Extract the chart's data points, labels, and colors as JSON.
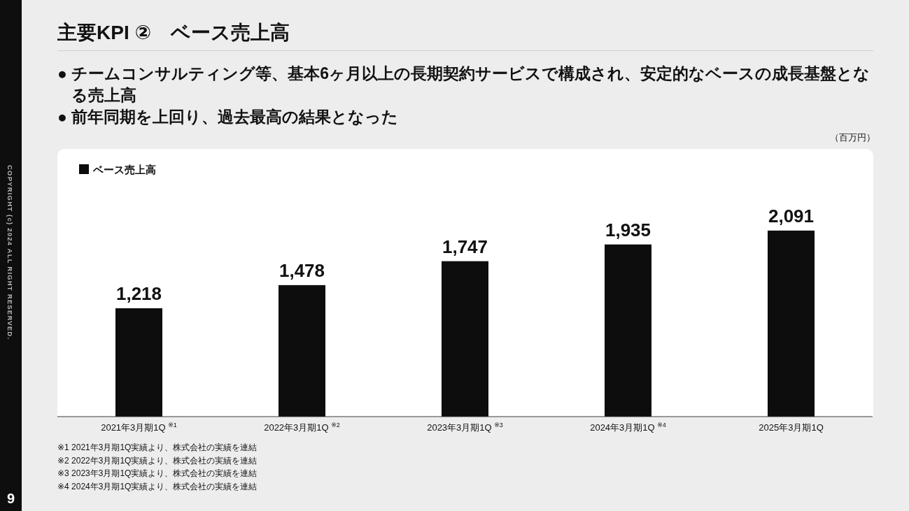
{
  "chart_data": {
    "type": "bar",
    "title": "主要KPI ②　ベース売上高",
    "subtitle": "● チームコンサルティング等、基本6ヶ月以上の長期契約サービスで構成され、安定的なベースの成長基盤となる売上高\n● 前年同期を上回り、過去最高の結果となった",
    "categories": [
      "2021年3月期1Q $^{※1}$",
      "2022年3月期1Q $^{※2}$",
      "2023年3月期1Q $^{※3}$",
      "2024年3月期1Q $^{※4}$",
      "2025年3月期1Q"
    ],
    "series": [
      {
        "name": "ベース売上高",
        "color": "#0d0d0d",
        "values": [
          1218,
          1478,
          1747,
          1935,
          2091
        ],
        "value_labels": [
          "1,218",
          "1,478",
          "1,747",
          "1,935",
          "2,091"
        ]
      }
    ],
    "relative": false,
    "legend": "top left",
    "grid": false,
    "annotations": [
      "（百万円）",
      "※1 2021年3月期1Q実績より、株式会社の実績を連結",
      "※2 2022年3月期1Q実績より、株式会社の実績を連結",
      "※3 2023年3月期1Q実績より、株式会社の実績を連結",
      "※4 2024年3月期1Q実績より、株式会社の実績を連結",
      "COPYRIGHT (c) 2024 ALL RIGHT RESERVED.",
      "9"
    ]
  }
}
